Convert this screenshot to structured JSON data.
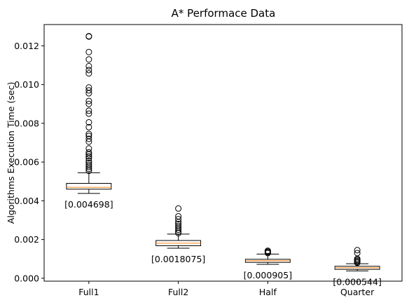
{
  "chart_data": {
    "type": "box",
    "title": "A* Performace Data",
    "xlabel": "",
    "ylabel": "Algorithms Execution Time (sec)",
    "ylim": [
      -0.00015,
      0.0131
    ],
    "yticks": [
      0.0,
      0.002,
      0.004,
      0.006,
      0.008,
      0.01,
      0.012
    ],
    "ytick_labels": [
      "0.000",
      "0.002",
      "0.004",
      "0.006",
      "0.008",
      "0.010",
      "0.012"
    ],
    "grid": false,
    "categories": [
      "Full1",
      "Full2",
      "Half",
      "Quarter"
    ],
    "boxes": [
      {
        "name": "Full1",
        "whisker_low": 0.00438,
        "q1": 0.0046,
        "median": 0.004698,
        "q3": 0.0049,
        "whisker_high": 0.00545,
        "outliers": [
          0.0125,
          0.01248,
          0.01168,
          0.0113,
          0.01095,
          0.01075,
          0.01058,
          0.00985,
          0.0097,
          0.00955,
          0.00915,
          0.009,
          0.00865,
          0.0085,
          0.00805,
          0.0078,
          0.00745,
          0.00735,
          0.0072,
          0.00705,
          0.0067,
          0.0065,
          0.0064,
          0.0063,
          0.0062,
          0.00605,
          0.00595,
          0.00585,
          0.00575,
          0.00565,
          0.00555
        ],
        "median_label": "[0.004698]"
      },
      {
        "name": "Full2",
        "whisker_low": 0.00155,
        "q1": 0.00168,
        "median": 0.0018075,
        "q3": 0.00195,
        "whisker_high": 0.00228,
        "outliers": [
          0.0036,
          0.0032,
          0.00305,
          0.0029,
          0.0028,
          0.0027,
          0.0026,
          0.0025,
          0.0024,
          0.00233
        ],
        "median_label": "[0.0018075]"
      },
      {
        "name": "Half",
        "whisker_low": 0.00072,
        "q1": 0.00082,
        "median": 0.000905,
        "q3": 0.00098,
        "whisker_high": 0.00125,
        "outliers": [
          0.00142,
          0.00138,
          0.00134,
          0.0013
        ],
        "median_label": "[0.000905]"
      },
      {
        "name": "Quarter",
        "whisker_low": 0.00038,
        "q1": 0.00046,
        "median": 0.000544,
        "q3": 0.00062,
        "whisker_high": 0.00075,
        "outliers": [
          0.00145,
          0.0013,
          0.001,
          0.00095,
          0.0009,
          0.00085,
          0.0008
        ],
        "median_label": "[0.000544]"
      }
    ],
    "colors": {
      "box": "#000000",
      "median": "#ff7f0e",
      "outlier": "#000000"
    }
  }
}
